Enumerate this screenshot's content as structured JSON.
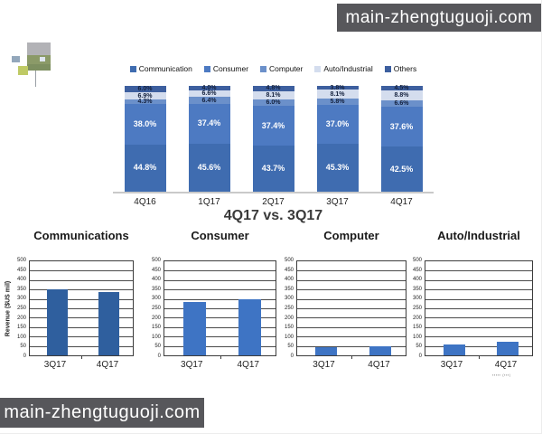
{
  "banners": {
    "top_right": "main-zhengtuguoji.com",
    "bottom_left": "main-zhengtuguoji.com"
  },
  "comparison_title": "4Q17 vs. 3Q17",
  "footnote": "▪▪▪▪▪ (▪▪▪)",
  "colors": {
    "banner_bg": "#57575b",
    "baseline": "#c9c9c9",
    "axis": "#3c3c3c"
  },
  "chart_data": [
    {
      "type": "bar",
      "subtype": "stacked-100-percent",
      "categories": [
        "4Q16",
        "1Q17",
        "2Q17",
        "3Q17",
        "4Q17"
      ],
      "series": [
        {
          "name": "Communication",
          "color": "#3f6cb0",
          "values": [
            44.8,
            45.6,
            43.7,
            45.3,
            42.5
          ]
        },
        {
          "name": "Consumer",
          "color": "#4d7ac2",
          "values": [
            38.0,
            37.4,
            37.4,
            37.0,
            37.6
          ]
        },
        {
          "name": "Computer",
          "color": "#6b90ca",
          "values": [
            4.3,
            6.4,
            6.0,
            5.8,
            6.6
          ]
        },
        {
          "name": "Auto/Industrial",
          "color": "#d4ddee",
          "values": [
            6.9,
            6.6,
            8.1,
            8.1,
            8.8
          ]
        },
        {
          "name": "Others",
          "color": "#3d5f9f",
          "values": [
            6.0,
            4.0,
            4.8,
            3.8,
            4.5
          ]
        }
      ],
      "value_suffix": "%",
      "legend_position": "top",
      "ylim": [
        0,
        100
      ],
      "grid": false
    },
    {
      "type": "bar",
      "title": "Communications",
      "ylabel": "Revenue ($US mil)",
      "categories": [
        "3Q17",
        "4Q17"
      ],
      "values": [
        350,
        335
      ],
      "ylim": [
        0,
        500
      ],
      "ytick_step": 50,
      "grid": true,
      "bar_color": "#2f5f9e"
    },
    {
      "type": "bar",
      "title": "Consumer",
      "ylabel": "",
      "categories": [
        "3Q17",
        "4Q17"
      ],
      "values": [
        285,
        300
      ],
      "ylim": [
        0,
        500
      ],
      "ytick_step": 50,
      "grid": true,
      "bar_color": "#3e74c4"
    },
    {
      "type": "bar",
      "title": "Computer",
      "ylabel": "",
      "categories": [
        "3Q17",
        "4Q17"
      ],
      "values": [
        45,
        50
      ],
      "ylim": [
        0,
        500
      ],
      "ytick_step": 50,
      "grid": true,
      "bar_color": "#3e74c4"
    },
    {
      "type": "bar",
      "title": "Auto/Industrial",
      "ylabel": "",
      "categories": [
        "3Q17",
        "4Q17"
      ],
      "values": [
        60,
        70
      ],
      "ylim": [
        0,
        500
      ],
      "ytick_step": 50,
      "grid": true,
      "bar_color": "#3e74c4"
    }
  ]
}
